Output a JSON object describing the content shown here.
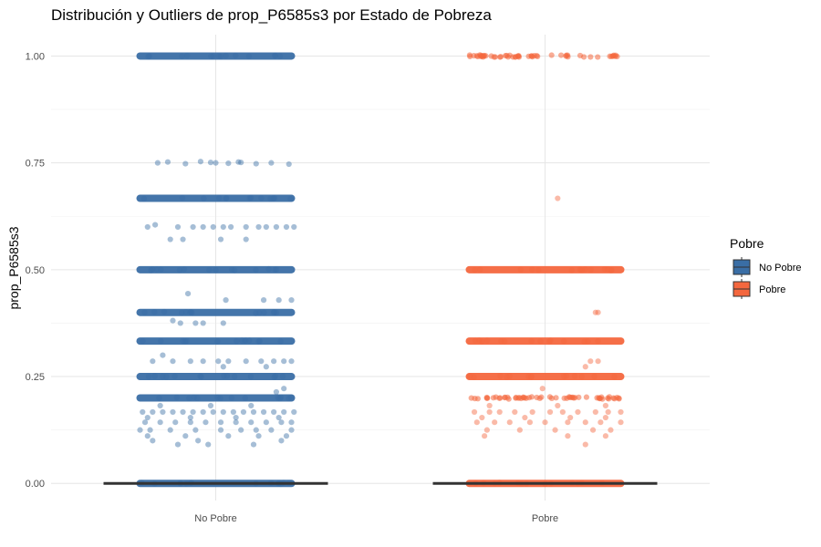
{
  "chart_data": {
    "type": "box",
    "title": "Distribución y Outliers de prop_P6585s3 por Estado de Pobreza",
    "xlabel": "",
    "ylabel": "prop_P6585s3",
    "ylim": [
      -0.04,
      1.05
    ],
    "grid": true,
    "categories": [
      "No Pobre",
      "Pobre"
    ],
    "y_ticks": [
      {
        "value": 0.0,
        "label": "0.00"
      },
      {
        "value": 0.25,
        "label": "0.25"
      },
      {
        "value": 0.5,
        "label": "0.50"
      },
      {
        "value": 0.75,
        "label": "0.75"
      },
      {
        "value": 1.0,
        "label": "1.00"
      }
    ],
    "legend": {
      "title": "Pobre",
      "position": "right",
      "entries": [
        {
          "label": "No Pobre",
          "color": "#3a6ea5"
        },
        {
          "label": "Pobre",
          "color": "#f4673e"
        }
      ]
    },
    "series": [
      {
        "category": "No Pobre",
        "color": "#3a6ea5",
        "box": {
          "q1": 0,
          "median": 0,
          "q3": 0
        },
        "dense_levels": [
          0,
          0.2,
          0.25,
          0.333,
          0.4,
          0.5,
          0.667,
          1.0
        ],
        "points": [
          [
            0.75,
            -0.23
          ],
          [
            0.752,
            -0.19
          ],
          [
            0.748,
            -0.12
          ],
          [
            0.753,
            -0.06
          ],
          [
            0.75,
            0.0
          ],
          [
            0.749,
            0.05
          ],
          [
            0.751,
            0.1
          ],
          [
            0.748,
            0.16
          ],
          [
            0.75,
            0.22
          ],
          [
            0.747,
            0.29
          ],
          [
            0.752,
            0.09
          ],
          [
            0.751,
            -0.02
          ],
          [
            0.6,
            -0.27
          ],
          [
            0.605,
            -0.24
          ],
          [
            0.6,
            -0.15
          ],
          [
            0.6,
            -0.09
          ],
          [
            0.6,
            -0.05
          ],
          [
            0.6,
            0.03
          ],
          [
            0.6,
            0.06
          ],
          [
            0.6,
            0.12
          ],
          [
            0.6,
            0.17
          ],
          [
            0.6,
            0.2
          ],
          [
            0.6,
            0.24
          ],
          [
            0.6,
            0.28
          ],
          [
            0.6,
            0.31
          ],
          [
            0.6,
            -0.01
          ],
          [
            0.571,
            -0.18
          ],
          [
            0.571,
            0.02
          ],
          [
            0.571,
            0.12
          ],
          [
            0.571,
            -0.13
          ],
          [
            0.444,
            -0.11
          ],
          [
            0.429,
            0.04
          ],
          [
            0.429,
            0.19
          ],
          [
            0.429,
            0.25
          ],
          [
            0.429,
            0.3
          ],
          [
            0.375,
            -0.14
          ],
          [
            0.375,
            -0.08
          ],
          [
            0.375,
            0.03
          ],
          [
            0.375,
            -0.05
          ],
          [
            0.381,
            -0.17
          ],
          [
            0.3,
            -0.21
          ],
          [
            0.286,
            -0.25
          ],
          [
            0.286,
            -0.17
          ],
          [
            0.286,
            -0.1
          ],
          [
            0.286,
            -0.05
          ],
          [
            0.286,
            0.01
          ],
          [
            0.286,
            0.05
          ],
          [
            0.286,
            0.12
          ],
          [
            0.286,
            0.18
          ],
          [
            0.286,
            0.23
          ],
          [
            0.286,
            0.27
          ],
          [
            0.286,
            0.3
          ],
          [
            0.273,
            0.03
          ],
          [
            0.273,
            0.2
          ],
          [
            0.222,
            0.27
          ],
          [
            0.214,
            0.24
          ],
          [
            0.182,
            -0.22
          ],
          [
            0.182,
            -0.02
          ],
          [
            0.182,
            0.14
          ],
          [
            0.167,
            -0.29
          ],
          [
            0.167,
            -0.25
          ],
          [
            0.167,
            -0.21
          ],
          [
            0.167,
            -0.17
          ],
          [
            0.167,
            -0.13
          ],
          [
            0.167,
            -0.09
          ],
          [
            0.167,
            -0.05
          ],
          [
            0.167,
            -0.01
          ],
          [
            0.167,
            0.03
          ],
          [
            0.167,
            0.07
          ],
          [
            0.167,
            0.11
          ],
          [
            0.167,
            0.15
          ],
          [
            0.167,
            0.19
          ],
          [
            0.167,
            0.23
          ],
          [
            0.167,
            0.27
          ],
          [
            0.167,
            0.31
          ],
          [
            0.154,
            -0.27
          ],
          [
            0.154,
            -0.1
          ],
          [
            0.154,
            0.08
          ],
          [
            0.154,
            0.25
          ],
          [
            0.143,
            -0.28
          ],
          [
            0.143,
            -0.22
          ],
          [
            0.143,
            -0.16
          ],
          [
            0.143,
            -0.1
          ],
          [
            0.143,
            -0.04
          ],
          [
            0.143,
            0.02
          ],
          [
            0.143,
            0.08
          ],
          [
            0.143,
            0.14
          ],
          [
            0.143,
            0.2
          ],
          [
            0.143,
            0.26
          ],
          [
            0.143,
            0.3
          ],
          [
            0.125,
            -0.3
          ],
          [
            0.125,
            -0.26
          ],
          [
            0.125,
            -0.18
          ],
          [
            0.125,
            -0.08
          ],
          [
            0.125,
            0.02
          ],
          [
            0.125,
            0.1
          ],
          [
            0.125,
            0.16
          ],
          [
            0.125,
            0.22
          ],
          [
            0.125,
            0.3
          ],
          [
            0.111,
            -0.27
          ],
          [
            0.111,
            -0.12
          ],
          [
            0.111,
            0.05
          ],
          [
            0.111,
            0.17
          ],
          [
            0.111,
            0.28
          ],
          [
            0.1,
            -0.25
          ],
          [
            0.1,
            -0.07
          ],
          [
            0.1,
            0.26
          ],
          [
            0.091,
            -0.15
          ],
          [
            0.091,
            -0.03
          ],
          [
            0.091,
            0.15
          ]
        ]
      },
      {
        "category": "Pobre",
        "color": "#f4673e",
        "box": {
          "q1": 0,
          "median": 0,
          "q3": 0
        },
        "dense_levels": [
          0,
          0.25,
          0.333,
          0.5
        ],
        "sparse_levels": [
          0.2,
          1.0
        ],
        "points": [
          [
            0.667,
            0.05
          ],
          [
            0.4,
            0.2
          ],
          [
            0.4,
            0.21
          ],
          [
            0.286,
            0.18
          ],
          [
            0.286,
            0.21
          ],
          [
            0.273,
            0.16
          ],
          [
            0.222,
            -0.01
          ],
          [
            0.182,
            0.24
          ],
          [
            0.182,
            -0.22
          ],
          [
            0.182,
            0.05
          ],
          [
            0.167,
            -0.28
          ],
          [
            0.167,
            -0.22
          ],
          [
            0.167,
            -0.18
          ],
          [
            0.167,
            -0.12
          ],
          [
            0.167,
            -0.05
          ],
          [
            0.167,
            0.02
          ],
          [
            0.167,
            0.07
          ],
          [
            0.167,
            0.13
          ],
          [
            0.167,
            0.2
          ],
          [
            0.167,
            0.25
          ],
          [
            0.167,
            0.3
          ],
          [
            0.154,
            -0.25
          ],
          [
            0.154,
            -0.08
          ],
          [
            0.154,
            0.1
          ],
          [
            0.154,
            0.24
          ],
          [
            0.143,
            -0.27
          ],
          [
            0.143,
            -0.2
          ],
          [
            0.143,
            -0.14
          ],
          [
            0.143,
            -0.06
          ],
          [
            0.143,
            0.0
          ],
          [
            0.143,
            0.09
          ],
          [
            0.143,
            0.16
          ],
          [
            0.143,
            0.22
          ],
          [
            0.143,
            0.3
          ],
          [
            0.125,
            -0.23
          ],
          [
            0.125,
            -0.1
          ],
          [
            0.125,
            0.04
          ],
          [
            0.125,
            0.19
          ],
          [
            0.125,
            0.26
          ],
          [
            0.111,
            -0.24
          ],
          [
            0.111,
            0.09
          ],
          [
            0.111,
            0.24
          ],
          [
            0.091,
            0.16
          ]
        ]
      }
    ]
  }
}
